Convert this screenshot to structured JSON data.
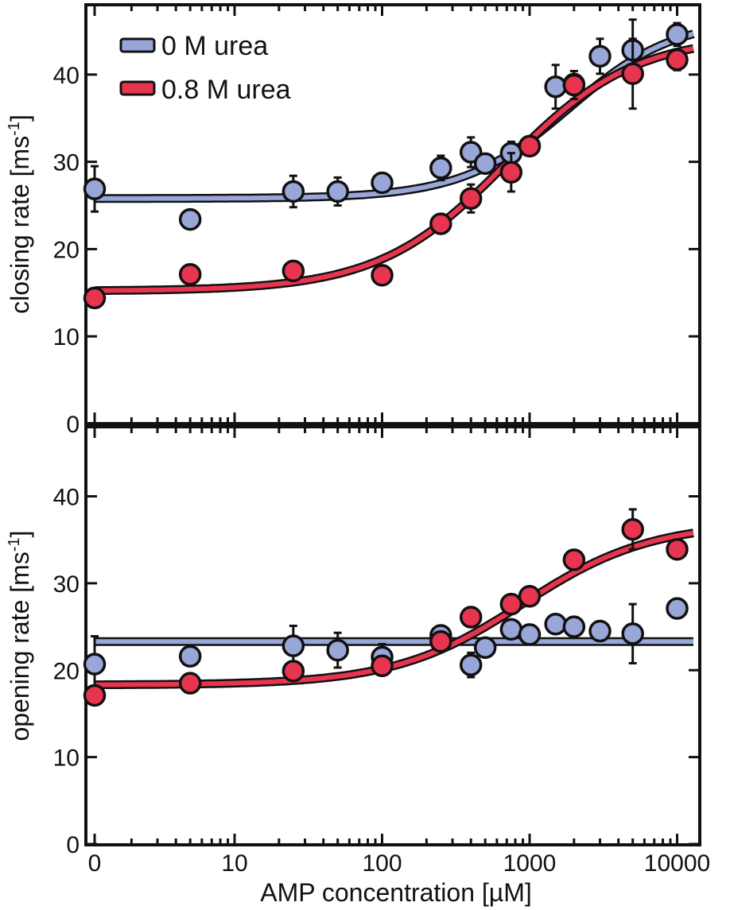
{
  "chart_data": [
    {
      "type": "scatter",
      "ylabel": "closing rate [ms",
      "ylabel_sup": "-1",
      "ylabel_end": "]",
      "ylim": [
        0,
        48
      ],
      "yticks": [
        "0",
        "10",
        "20",
        "30",
        "40"
      ],
      "xscale": "log (first point at 0)",
      "xlim": [
        0,
        10000
      ],
      "legend": {
        "position": "top-left"
      },
      "series": [
        {
          "name": "0 M urea",
          "color": "#98a6d8",
          "points": [
            {
              "x": 0,
              "y": 26.9,
              "err": 2.6
            },
            {
              "x": 5,
              "y": 23.4,
              "err": 0.3
            },
            {
              "x": 25,
              "y": 26.6,
              "err": 1.8
            },
            {
              "x": 50,
              "y": 26.6,
              "err": 1.6
            },
            {
              "x": 100,
              "y": 27.6,
              "err": 0.8
            },
            {
              "x": 250,
              "y": 29.3,
              "err": 1.4
            },
            {
              "x": 400,
              "y": 31.1,
              "err": 1.7
            },
            {
              "x": 500,
              "y": 29.8,
              "err": 0.6
            },
            {
              "x": 750,
              "y": 31.0,
              "err": 1.3
            },
            {
              "x": 1500,
              "y": 38.6,
              "err": 2.5
            },
            {
              "x": 2000,
              "y": 38.9,
              "err": 1.0
            },
            {
              "x": 3000,
              "y": 42.1,
              "err": 2.0
            },
            {
              "x": 5000,
              "y": 42.8,
              "err": 3.5
            },
            {
              "x": 10000,
              "y": 44.6,
              "err": 1.3
            }
          ],
          "fit": {
            "bottom": 25.8,
            "top": 46.5,
            "ec50": 1850,
            "hill": 1.2
          }
        },
        {
          "name": "0.8 M urea",
          "color": "#e8354f",
          "points": [
            {
              "x": 0,
              "y": 14.4,
              "err": 0.5
            },
            {
              "x": 5,
              "y": 17.1,
              "err": 0.5
            },
            {
              "x": 25,
              "y": 17.5,
              "err": 0.5
            },
            {
              "x": 100,
              "y": 17.0,
              "err": 0.4
            },
            {
              "x": 250,
              "y": 22.9,
              "err": 0.6
            },
            {
              "x": 400,
              "y": 25.8,
              "err": 1.6
            },
            {
              "x": 750,
              "y": 28.8,
              "err": 2.2
            },
            {
              "x": 1000,
              "y": 31.8,
              "err": 0.7
            },
            {
              "x": 2000,
              "y": 38.8,
              "err": 1.6
            },
            {
              "x": 5000,
              "y": 40.1,
              "err": 4.0
            },
            {
              "x": 10000,
              "y": 41.7,
              "err": 1.2
            }
          ],
          "fit": {
            "bottom": 15.2,
            "top": 44.5,
            "ec50": 700,
            "hill": 1.0
          }
        }
      ]
    },
    {
      "type": "scatter",
      "ylabel": "opening rate [ms",
      "ylabel_sup": "-1",
      "ylabel_end": "]",
      "xlabel": "AMP concentration [µM]",
      "ylim": [
        0,
        48
      ],
      "yticks": [
        "0",
        "10",
        "20",
        "30",
        "40"
      ],
      "xticks": [
        "0",
        "10",
        "100",
        "1000",
        "10000"
      ],
      "xscale": "log (first point at 0)",
      "xlim": [
        0,
        10000
      ],
      "series": [
        {
          "name": "0 M urea",
          "color": "#98a6d8",
          "points": [
            {
              "x": 0,
              "y": 20.7,
              "err": 3.2
            },
            {
              "x": 5,
              "y": 21.6,
              "err": 0.4
            },
            {
              "x": 25,
              "y": 22.8,
              "err": 2.3
            },
            {
              "x": 50,
              "y": 22.3,
              "err": 2.0
            },
            {
              "x": 100,
              "y": 21.5,
              "err": 1.5
            },
            {
              "x": 250,
              "y": 24.0,
              "err": 1.0
            },
            {
              "x": 400,
              "y": 20.6,
              "err": 1.4
            },
            {
              "x": 500,
              "y": 22.6,
              "err": 0.5
            },
            {
              "x": 750,
              "y": 24.7,
              "err": 0.6
            },
            {
              "x": 1000,
              "y": 24.1,
              "err": 1.0
            },
            {
              "x": 1500,
              "y": 25.3,
              "err": 0.4
            },
            {
              "x": 2000,
              "y": 25.0,
              "err": 0.3
            },
            {
              "x": 3000,
              "y": 24.5,
              "err": 0.3
            },
            {
              "x": 5000,
              "y": 24.2,
              "err": 3.4
            },
            {
              "x": 10000,
              "y": 27.1,
              "err": 0.6
            }
          ],
          "fit": {
            "constant": 23.3
          }
        },
        {
          "name": "0.8 M urea",
          "color": "#e8354f",
          "points": [
            {
              "x": 0,
              "y": 17.1,
              "err": 0.5
            },
            {
              "x": 5,
              "y": 18.5,
              "err": 0.4
            },
            {
              "x": 25,
              "y": 19.9,
              "err": 0.5
            },
            {
              "x": 100,
              "y": 20.5,
              "err": 0.6
            },
            {
              "x": 250,
              "y": 23.3,
              "err": 0.6
            },
            {
              "x": 400,
              "y": 26.1,
              "err": 0.5
            },
            {
              "x": 750,
              "y": 27.6,
              "err": 0.6
            },
            {
              "x": 1000,
              "y": 28.5,
              "err": 0.9
            },
            {
              "x": 2000,
              "y": 32.7,
              "err": 1.0
            },
            {
              "x": 5000,
              "y": 36.2,
              "err": 2.3
            },
            {
              "x": 10000,
              "y": 33.9,
              "err": 0.5
            }
          ],
          "fit": {
            "bottom": 18.3,
            "top": 37.0,
            "ec50": 900,
            "hill": 1.0
          }
        }
      ]
    }
  ]
}
